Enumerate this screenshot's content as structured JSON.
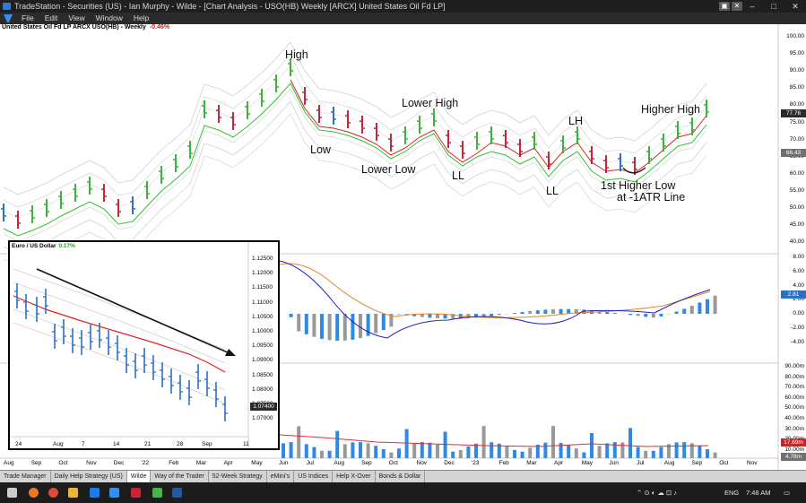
{
  "window": {
    "title": "TradeStation - Securities (US) - Ian Murphy - Wilde - [Chart Analysis - USO(HB) Weekly [ARCX] United States Oil Fd LP]",
    "minimize": "–",
    "maximize": "□",
    "close": "✕"
  },
  "menu": [
    "File",
    "Edit",
    "View",
    "Window",
    "Help"
  ],
  "chart": {
    "symbol_line": "United States Oil Fd LP  ARCX  USO(HB) - Weekly",
    "change": "-0.46%",
    "price_ticks": [
      "100.00",
      "95.00",
      "90.00",
      "85.00",
      "80.00",
      "75.00",
      "70.00",
      "65.00",
      "60.00",
      "55.00",
      "50.00",
      "45.00",
      "40.00"
    ],
    "last_price": "77.76",
    "ma_price": "66.43",
    "macd_ticks": [
      "8.00",
      "6.00",
      "4.00",
      "2.00",
      "0.00",
      "-2.00",
      "-4.00"
    ],
    "macd_value": "2.81",
    "volume_ticks": [
      "90.00m",
      "80.00m",
      "70.00m",
      "60.00m",
      "50.00m",
      "40.00m",
      "30.00m",
      "20.00m",
      "10.00m"
    ],
    "volume_value": "17.69m",
    "volume_avg": "4.78m",
    "x_labels": [
      "Aug",
      "Sep",
      "Oct",
      "Nov",
      "Dec",
      "'22",
      "Feb",
      "Mar",
      "Apr",
      "May",
      "Jun",
      "Jul",
      "Aug",
      "Sep",
      "Oct",
      "Nov",
      "Dec",
      "'23",
      "Feb",
      "Mar",
      "Apr",
      "May",
      "Jun",
      "Jul",
      "Aug",
      "Sep",
      "Oct",
      "Nov"
    ],
    "annotations": {
      "high": "High",
      "low": "Low",
      "lower_high": "Lower High",
      "lower_low": "Lower Low",
      "ll1": "LL",
      "ll2": "LL",
      "lh": "LH",
      "higher_high": "Higher High",
      "higher_low_1": "1st Higher Low",
      "higher_low_2": "at -1ATR Line"
    }
  },
  "inset": {
    "title": "Euro / US Dollar",
    "change": "0.17%",
    "y_ticks": [
      "1.12500",
      "1.12000",
      "1.11500",
      "1.11000",
      "1.10500",
      "1.10000",
      "1.09500",
      "1.09000",
      "1.08500",
      "1.08000",
      "1.07500",
      "1.07000"
    ],
    "last": "1.07400",
    "x_labels": [
      "24",
      "Aug",
      "7",
      "14",
      "21",
      "28",
      "Sep",
      "11"
    ]
  },
  "tabs": [
    "Trade Manager",
    "Daily Help Strategy (US)",
    "Wilde",
    "Way of the Trader",
    "52-Week Strategy",
    "eMini's",
    "US Indices",
    "Help X-Over",
    "Bonds & Dollar"
  ],
  "active_tab": "Wilde",
  "tray": {
    "lang": "ENG",
    "time": "7:48 AM"
  },
  "colors": {
    "up": "#3cb43c",
    "down": "#c0283c",
    "neutral": "#2e6fc0",
    "ma_red": "#e02020",
    "ma_green": "#30c030"
  }
}
